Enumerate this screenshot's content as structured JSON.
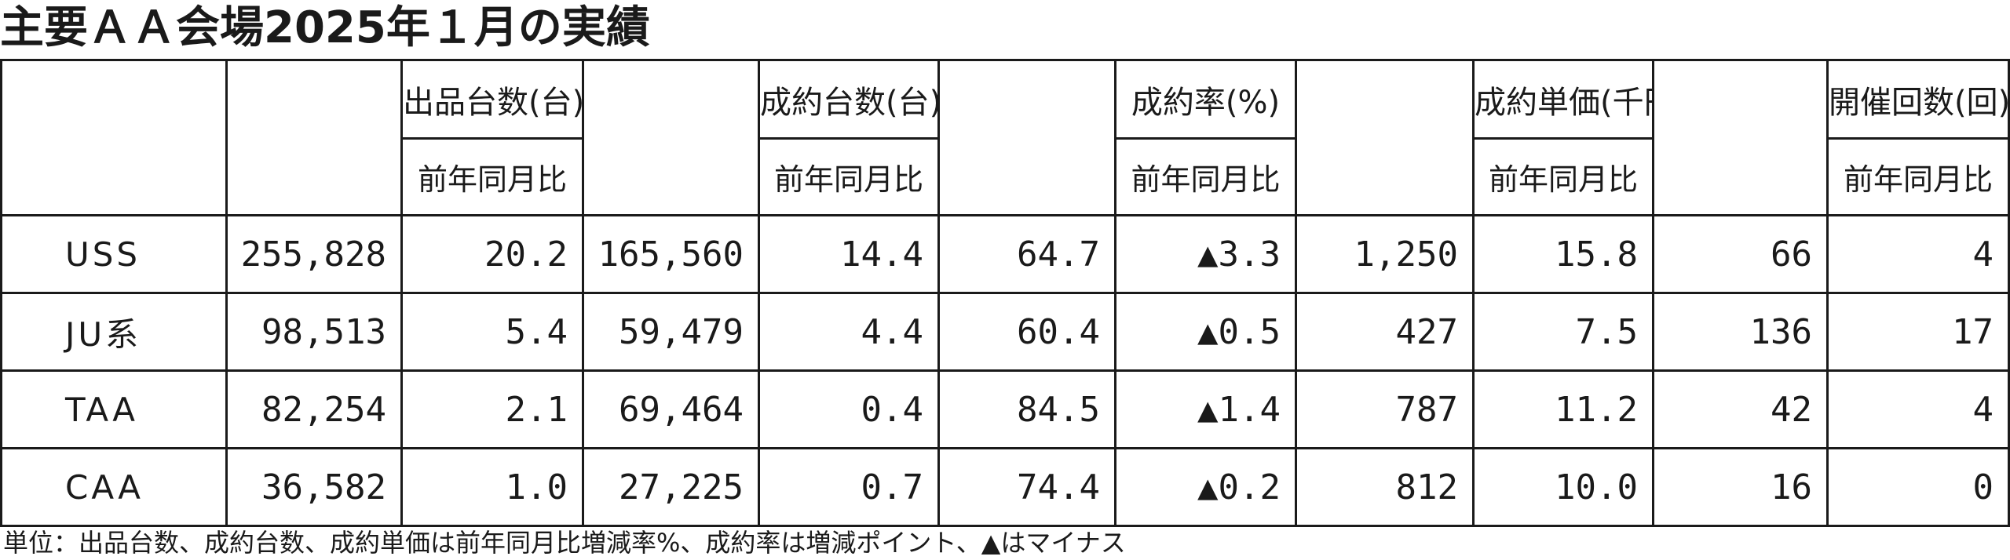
{
  "title": "主要ＡＡ会場2025年１月の実績",
  "groups": [
    {
      "label": "出品台数(台)"
    },
    {
      "label": "成約台数(台)"
    },
    {
      "label": "成約率(%)"
    },
    {
      "label": "成約単価(千円)"
    },
    {
      "label": "開催回数(回)"
    }
  ],
  "sub_label": "前年同月比",
  "rows": [
    {
      "name": "USS",
      "cells": [
        "255,828",
        "20.2",
        "165,560",
        "14.4",
        "64.7",
        "▲3.3",
        "1,250",
        "15.8",
        "66",
        "4"
      ]
    },
    {
      "name": "JU系",
      "cells": [
        "98,513",
        "5.4",
        "59,479",
        "4.4",
        "60.4",
        "▲0.5",
        "427",
        "7.5",
        "136",
        "17"
      ]
    },
    {
      "name": "TAA",
      "cells": [
        "82,254",
        "2.1",
        "69,464",
        "0.4",
        "84.5",
        "▲1.4",
        "787",
        "11.2",
        "42",
        "4"
      ]
    },
    {
      "name": "CAA",
      "cells": [
        "36,582",
        "1.0",
        "27,225",
        "0.7",
        "74.4",
        "▲0.2",
        "812",
        "10.0",
        "16",
        "0"
      ]
    }
  ],
  "footnote": "単位：出品台数、成約台数、成約単価は前年同月比増減率%、成約率は増減ポイント、▲はマイナス"
}
